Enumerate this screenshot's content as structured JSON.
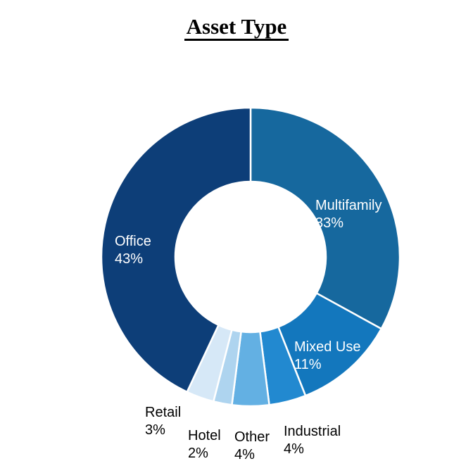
{
  "page": {
    "background": "#FFFFFF"
  },
  "chart_data": {
    "type": "pie",
    "subtype": "donut",
    "title": "Asset Type",
    "categories": [
      "Multifamily",
      "Mixed Use",
      "Industrial",
      "Other",
      "Hotel",
      "Retail",
      "Office"
    ],
    "values": [
      33,
      11,
      4,
      4,
      2,
      3,
      43
    ],
    "units": "percent",
    "start_angle_deg": 0,
    "direction": "clockwise",
    "donut_hole_ratio": 0.505,
    "separator_color": "#FFFFFF",
    "legend": "none",
    "segments": [
      {
        "label": "Multifamily",
        "value": 33,
        "pct": "33%",
        "color": "#16689E",
        "label_color": "#FFFFFF",
        "label_placement": "inside"
      },
      {
        "label": "Mixed Use",
        "value": 11,
        "pct": "11%",
        "color": "#1377BD",
        "label_color": "#FFFFFF",
        "label_placement": "inside"
      },
      {
        "label": "Industrial",
        "value": 4,
        "pct": "4%",
        "color": "#2289D0",
        "label_color": "#000000",
        "label_placement": "outside"
      },
      {
        "label": "Other",
        "value": 4,
        "pct": "4%",
        "color": "#63B0E3",
        "label_color": "#000000",
        "label_placement": "outside"
      },
      {
        "label": "Hotel",
        "value": 2,
        "pct": "2%",
        "color": "#AED4EF",
        "label_color": "#000000",
        "label_placement": "outside"
      },
      {
        "label": "Retail",
        "value": 3,
        "pct": "3%",
        "color": "#D6E8F7",
        "label_color": "#000000",
        "label_placement": "outside"
      },
      {
        "label": "Office",
        "value": 43,
        "pct": "43%",
        "color": "#0D3E78",
        "label_color": "#FFFFFF",
        "label_placement": "inside"
      }
    ]
  }
}
